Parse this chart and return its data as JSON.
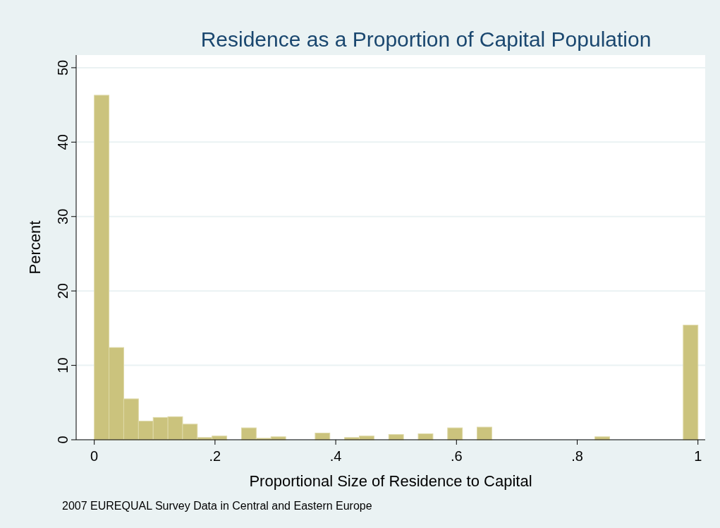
{
  "chart_data": {
    "type": "histogram",
    "title": "Residence as a Proportion of Capital Population",
    "xlabel": "Proportional Size of Residence to Capital",
    "ylabel": "Percent",
    "annotations": [
      "2007 EUREQUAL Survey Data in Central and Eastern Europe"
    ],
    "bins": [
      0,
      0.0244,
      0.0488,
      0.0732,
      0.0976,
      0.122,
      0.1463,
      0.1707,
      0.1951,
      0.2195,
      0.2439,
      0.2683,
      0.2927,
      0.3171,
      0.3415,
      0.3659,
      0.3902,
      0.4146,
      0.439,
      0.4634,
      0.4878,
      0.5122,
      0.5366,
      0.561,
      0.5854,
      0.6098,
      0.6341,
      0.6585,
      0.6829,
      0.7073,
      0.7317,
      0.7561,
      0.7805,
      0.8049,
      0.8293,
      0.8537,
      0.878,
      0.9024,
      0.9268,
      0.9512,
      0.9756,
      1
    ],
    "values": [
      46.3,
      12.4,
      5.5,
      2.5,
      3.0,
      3.1,
      2.1,
      0.3,
      0.5,
      0,
      1.6,
      0.2,
      0.4,
      0,
      0,
      0.9,
      0,
      0.3,
      0.5,
      0,
      0.7,
      0,
      0.8,
      0,
      1.6,
      0,
      1.7,
      0,
      0,
      0,
      0,
      0,
      0,
      0,
      0.4,
      0,
      0,
      0,
      0,
      0,
      15.4
    ],
    "color": "#cbc37d",
    "xlim": [
      -0.03,
      1.012
    ],
    "ylim": [
      0,
      51.7
    ],
    "xticks": [
      0,
      {
        "value": 0.2,
        "label": ".2"
      },
      {
        "value": 0.4,
        "label": ".4"
      },
      {
        "value": 0.6,
        "label": ".6"
      },
      {
        "value": 0.8,
        "label": ".8"
      },
      1
    ],
    "yticks": [
      0,
      10,
      20,
      30,
      40,
      50
    ],
    "grid": "y"
  }
}
